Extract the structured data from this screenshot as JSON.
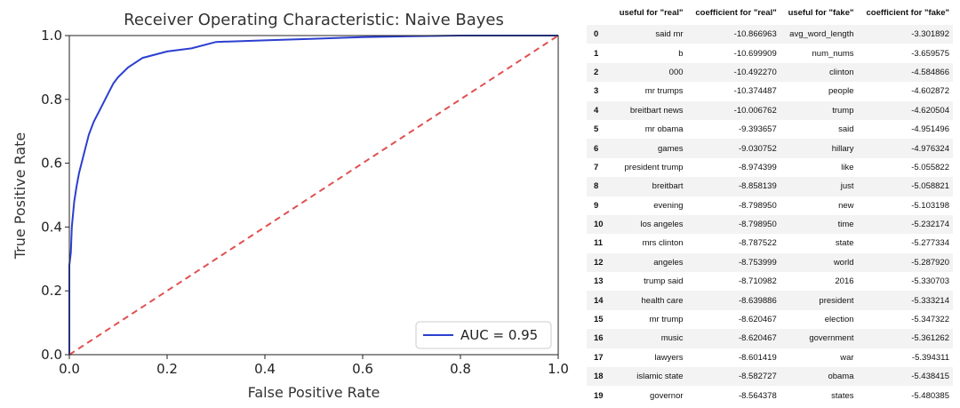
{
  "chart_data": {
    "type": "line",
    "title": "Receiver Operating Characteristic: Naive Bayes",
    "xlabel": "False Positive Rate",
    "ylabel": "True Positive Rate",
    "xlim": [
      0.0,
      1.0
    ],
    "ylim": [
      0.0,
      1.0
    ],
    "x_ticks": [
      "0.0",
      "0.2",
      "0.4",
      "0.6",
      "0.8",
      "1.0"
    ],
    "y_ticks": [
      "0.0",
      "0.2",
      "0.4",
      "0.6",
      "0.8",
      "1.0"
    ],
    "grid": false,
    "legend_position": "lower-right",
    "series": [
      {
        "name": "AUC = 0.95",
        "color": "#2b3fcf",
        "x": [
          0.0,
          0.0,
          0.003,
          0.005,
          0.01,
          0.015,
          0.02,
          0.03,
          0.04,
          0.05,
          0.06,
          0.07,
          0.08,
          0.09,
          0.1,
          0.12,
          0.15,
          0.2,
          0.25,
          0.3,
          0.4,
          0.5,
          0.6,
          0.7,
          0.8,
          1.0
        ],
        "y": [
          0.0,
          0.28,
          0.32,
          0.4,
          0.48,
          0.53,
          0.57,
          0.63,
          0.69,
          0.73,
          0.76,
          0.79,
          0.82,
          0.85,
          0.87,
          0.9,
          0.93,
          0.95,
          0.96,
          0.98,
          0.985,
          0.99,
          0.995,
          0.998,
          1.0,
          1.0
        ]
      },
      {
        "color": "#e05050",
        "style": "dashed",
        "x": [
          0.0,
          1.0
        ],
        "y": [
          0.0,
          1.0
        ]
      }
    ]
  },
  "table": {
    "headers": [
      "",
      "useful for \"real\"",
      "coefficient for \"real\"",
      "useful for \"fake\"",
      "coefficient for \"fake\""
    ],
    "rows": [
      [
        "0",
        "said mr",
        "-10.866963",
        "avg_word_length",
        "-3.301892"
      ],
      [
        "1",
        "b",
        "-10.699909",
        "num_nums",
        "-3.659575"
      ],
      [
        "2",
        "000",
        "-10.492270",
        "clinton",
        "-4.584866"
      ],
      [
        "3",
        "mr trumps",
        "-10.374487",
        "people",
        "-4.602872"
      ],
      [
        "4",
        "breitbart news",
        "-10.006762",
        "trump",
        "-4.620504"
      ],
      [
        "5",
        "mr obama",
        "-9.393657",
        "said",
        "-4.951496"
      ],
      [
        "6",
        "games",
        "-9.030752",
        "hillary",
        "-4.976324"
      ],
      [
        "7",
        "president trump",
        "-8.974399",
        "like",
        "-5.055822"
      ],
      [
        "8",
        "breitbart",
        "-8.858139",
        "just",
        "-5.058821"
      ],
      [
        "9",
        "evening",
        "-8.798950",
        "new",
        "-5.103198"
      ],
      [
        "10",
        "los angeles",
        "-8.798950",
        "time",
        "-5.232174"
      ],
      [
        "11",
        "mrs clinton",
        "-8.787522",
        "state",
        "-5.277334"
      ],
      [
        "12",
        "angeles",
        "-8.753999",
        "world",
        "-5.287920"
      ],
      [
        "13",
        "trump said",
        "-8.710982",
        "2016",
        "-5.330703"
      ],
      [
        "14",
        "health care",
        "-8.639886",
        "president",
        "-5.333214"
      ],
      [
        "15",
        "mr trump",
        "-8.620467",
        "election",
        "-5.347322"
      ],
      [
        "16",
        "music",
        "-8.620467",
        "government",
        "-5.361262"
      ],
      [
        "17",
        "lawyers",
        "-8.601419",
        "war",
        "-5.394311"
      ],
      [
        "18",
        "islamic state",
        "-8.582727",
        "obama",
        "-5.438415"
      ],
      [
        "19",
        "governor",
        "-8.564378",
        "states",
        "-5.480385"
      ]
    ]
  }
}
